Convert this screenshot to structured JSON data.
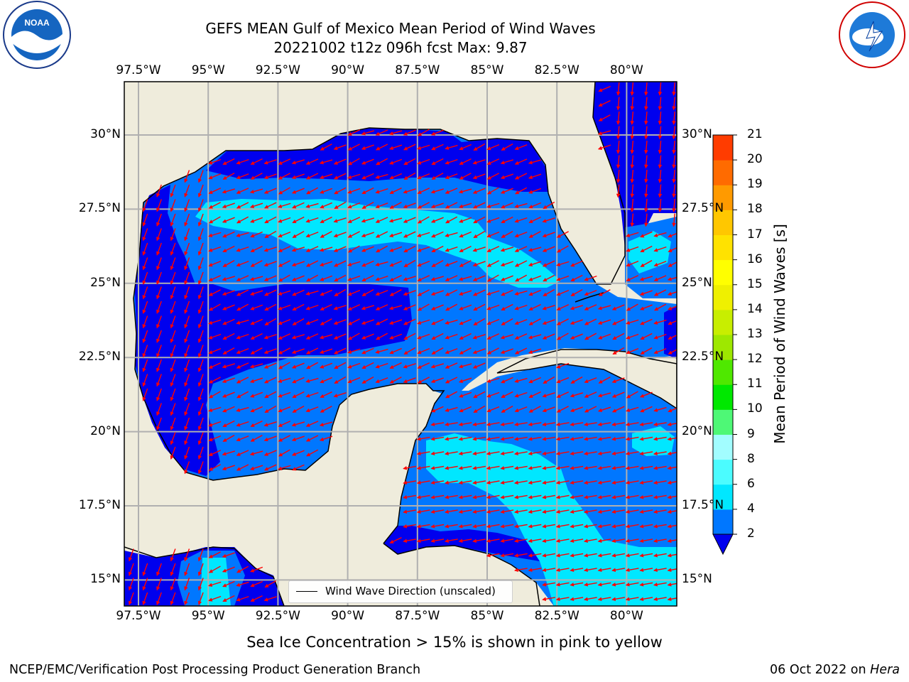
{
  "header": {
    "title_line1": "GEFS MEAN Gulf of Mexico Mean Period of Wind Waves",
    "title_line2": "20221002 t12z 096h fcst   Max: 9.87"
  },
  "logos": {
    "left": "NOAA",
    "left_ring_text": "NATIONAL OCEANIC AND ATMOSPHERIC ADMINISTRATION · U.S. DEPARTMENT OF COMMERCE",
    "right_ring_text": "NATIONAL WEATHER SERVICE"
  },
  "map": {
    "lon_labels": [
      "97.5°W",
      "95°W",
      "92.5°W",
      "90°W",
      "87.5°W",
      "85°W",
      "82.5°W",
      "80°W"
    ],
    "lat_labels": [
      "30°N",
      "27.5°N",
      "25°N",
      "22.5°N",
      "20°N",
      "17.5°N",
      "15°N"
    ],
    "legend_label": "Wind Wave Direction (unscaled)",
    "land_color": "#efecdc",
    "arrow_color": "#ff0000"
  },
  "colorbar": {
    "label": "Mean Period of Wind Waves [s]",
    "ticks": [
      "2",
      "4",
      "6",
      "8",
      "9",
      "10",
      "11",
      "12",
      "13",
      "14",
      "15",
      "16",
      "17",
      "18",
      "19",
      "20",
      "21"
    ],
    "colors": [
      "#0077ff",
      "#00e7ff",
      "#4bfcff",
      "#a2fdff",
      "#4ef876",
      "#00e800",
      "#4fe800",
      "#9ee800",
      "#c8ee00",
      "#eff000",
      "#ffff00",
      "#ffe200",
      "#ffc700",
      "#ff9a00",
      "#ff6b00",
      "#ff3c00",
      "#ff0000"
    ],
    "under_color": "#0000ee"
  },
  "footer": {
    "sea_ice_note": "Sea Ice Concentration > 15% is shown in pink to yellow",
    "left": "NCEP/EMC/Verification Post Processing Product Generation Branch",
    "date": "06 Oct 2022 on ",
    "host": "Hera"
  }
}
